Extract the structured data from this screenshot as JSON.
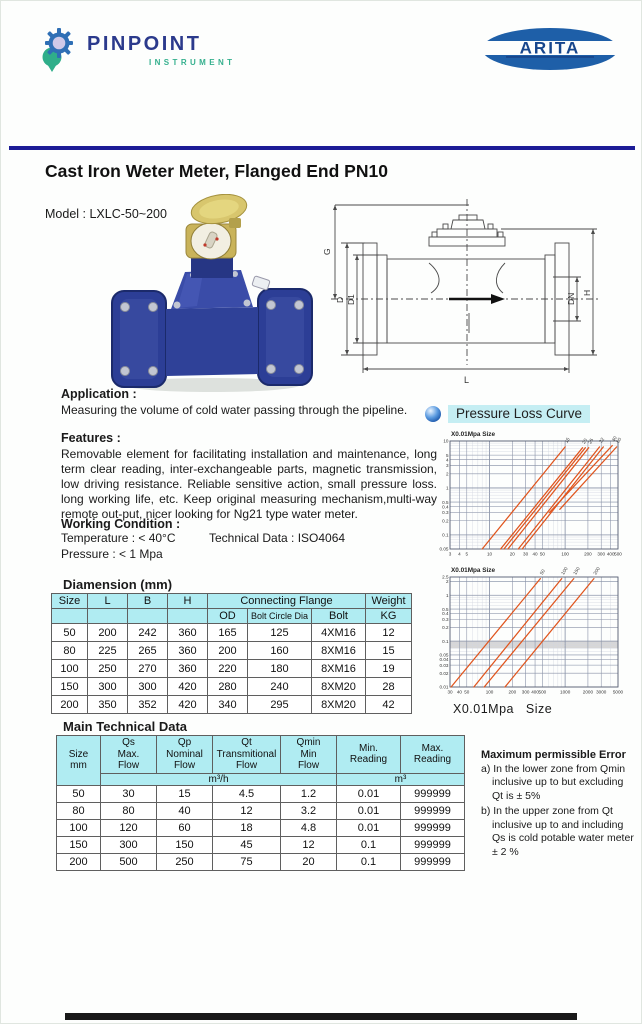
{
  "colors": {
    "accent_navy": "#1c1c96",
    "brand_navy": "#2b3a8c",
    "brand_teal": "#35b08e",
    "arita_blue": "#1e5fa8",
    "table_header_cyan": "#b0ecf2",
    "curve_orange": "#e0551e",
    "highlight_cyan": "#c5eef3"
  },
  "header": {
    "brand_name": "PINPOINT",
    "brand_sub": "INSTRUMENT",
    "partner_name": "ARITA"
  },
  "title": "Cast Iron Weter Meter, Flanged End PN10",
  "model": "Model : LXLC-50~200",
  "sections": {
    "application": {
      "heading": "Application :",
      "body": "Measuring the volume of cold water passing through the pipeline."
    },
    "features": {
      "heading": "Features :",
      "body": "Removable element for facilitating installation and maintenance, long term clear reading, inter-exchangeable parts, magnetic transmission, low driving resistance. Reliable sensitive action, small pressure loss. long working life, etc. Keep original measuring mechanism,multi-way remote out-put, nicer looking for Ng21 type water meter."
    },
    "working_condition": {
      "heading": "Working Condition :",
      "temperature": "Temperature : < 40°C",
      "technical_data": "Technical Data : ISO4064",
      "pressure": "Pressure : < 1 Mpa"
    }
  },
  "pressure_loss": {
    "heading": "Pressure Loss Curve",
    "bottom_caption": "X0.01Mpa   Size"
  },
  "dimension_table": {
    "heading": "Diamension (mm)",
    "col_headers": {
      "size": "Size",
      "l": "L",
      "b": "B",
      "h": "H",
      "flange": "Connecting Flange",
      "weight": "Weight",
      "od": "OD",
      "bolt_circle": "Bolt Circle Dia",
      "bolt": "Bolt",
      "kg": "KG"
    },
    "rows": [
      [
        "50",
        "200",
        "242",
        "360",
        "165",
        "125",
        "4XM16",
        "12"
      ],
      [
        "80",
        "225",
        "265",
        "360",
        "200",
        "160",
        "8XM16",
        "15"
      ],
      [
        "100",
        "250",
        "270",
        "360",
        "220",
        "180",
        "8XM16",
        "19"
      ],
      [
        "150",
        "300",
        "300",
        "420",
        "280",
        "240",
        "8XM20",
        "28"
      ],
      [
        "200",
        "350",
        "352",
        "420",
        "340",
        "295",
        "8XM20",
        "42"
      ]
    ]
  },
  "technical_table": {
    "heading": "Main Technical Data",
    "col_headers": {
      "size": "Size\nmm",
      "qs": "Qs\nMax.\nFlow",
      "qp": "Qp\nNominal\nFlow",
      "qt": "Qt\nTransmitional\nFlow",
      "qmin": "Qmin\nMin\nFlow",
      "min_reading": "Min.\nReading",
      "max_reading": "Max.\nReading",
      "flow_unit": "m³/h",
      "reading_unit": "m³"
    },
    "rows": [
      [
        "50",
        "30",
        "15",
        "4.5",
        "1.2",
        "0.01",
        "999999"
      ],
      [
        "80",
        "80",
        "40",
        "12",
        "3.2",
        "0.01",
        "999999"
      ],
      [
        "100",
        "120",
        "60",
        "18",
        "4.8",
        "0.01",
        "999999"
      ],
      [
        "150",
        "300",
        "150",
        "45",
        "12",
        "0.1",
        "999999"
      ],
      [
        "200",
        "500",
        "250",
        "75",
        "20",
        "0.1",
        "999999"
      ]
    ]
  },
  "error_notes": {
    "heading": "Maximum permissible Error",
    "item_a": "a) In the lower zone from Qmin inclusive up to but excluding Qt is ± 5%",
    "item_b": "b) In the upper zone from Qt inclusive up to and including Qs is cold potable water meter ± 2 %"
  },
  "drawing_labels": [
    "G",
    "D",
    "D1",
    "DN",
    "H",
    "L"
  ],
  "chart_data": [
    {
      "type": "line",
      "title": "X0.01Mpa Size",
      "x_scale": "log",
      "y_scale": "log",
      "xlim": [
        3,
        500
      ],
      "ylim": [
        0.05,
        10
      ],
      "x_ticks": [
        "3",
        "4",
        "5",
        "10",
        "20",
        "30",
        "40",
        "50",
        "100",
        "200",
        "300",
        "400",
        "500"
      ],
      "y_ticks": [
        "10",
        "5",
        "4",
        "3",
        "2",
        "1",
        "0.5",
        "0.4",
        "0.3",
        "0.2",
        "0.1",
        "0.05"
      ],
      "line_color": "#e0551e",
      "grid": true,
      "legend": "size labels rotated at top of each curve",
      "series": [
        {
          "name": "15",
          "points": [
            [
              8,
              0.05
            ],
            [
              100,
              7.5
            ]
          ]
        },
        {
          "name": "20",
          "points": [
            [
              14,
              0.05
            ],
            [
              170,
              7.2
            ]
          ]
        },
        {
          "name": "",
          "points": [
            [
              15.5,
              0.05
            ],
            [
              185,
              7.2
            ]
          ]
        },
        {
          "name": "25",
          "points": [
            [
              17.5,
              0.05
            ],
            [
              205,
              7.2
            ]
          ]
        },
        {
          "name": "32",
          "points": [
            [
              24,
              0.05
            ],
            [
              285,
              7.5
            ]
          ]
        },
        {
          "name": "",
          "points": [
            [
              27,
              0.05
            ],
            [
              320,
              7.5
            ]
          ]
        },
        {
          "name": "40",
          "points": [
            [
              62,
              0.3
            ],
            [
              420,
              8
            ]
          ]
        },
        {
          "name": "50",
          "points": [
            [
              85,
              0.35
            ],
            [
              480,
              7.5
            ]
          ]
        }
      ]
    },
    {
      "type": "line",
      "title": "X0.01Mpa Size",
      "x_scale": "log",
      "y_scale": "log",
      "xlim": [
        30,
        5000
      ],
      "ylim": [
        0.01,
        2.5
      ],
      "x_ticks": [
        "30",
        "40",
        "50",
        "100",
        "200",
        "300",
        "400",
        "500",
        "1000",
        "2000",
        "3000",
        "5000"
      ],
      "y_ticks": [
        "2.5",
        "2",
        "1",
        "0.5",
        "0.4",
        "0.3",
        "0.2",
        "0.1",
        "0.05",
        "0.04",
        "0.03",
        "0.02",
        "0.01"
      ],
      "line_color": "#e0551e",
      "grid": true,
      "band": [
        0.07,
        0.1
      ],
      "series": [
        {
          "name": "50",
          "points": [
            [
              31,
              0.01
            ],
            [
              470,
              2.3
            ]
          ]
        },
        {
          "name": "100",
          "points": [
            [
              62,
              0.01
            ],
            [
              900,
              2.3
            ]
          ]
        },
        {
          "name": "150",
          "points": [
            [
              85,
              0.01
            ],
            [
              1300,
              2.3
            ]
          ]
        },
        {
          "name": "200",
          "points": [
            [
              160,
              0.01
            ],
            [
              2400,
              2.3
            ]
          ]
        }
      ]
    }
  ]
}
